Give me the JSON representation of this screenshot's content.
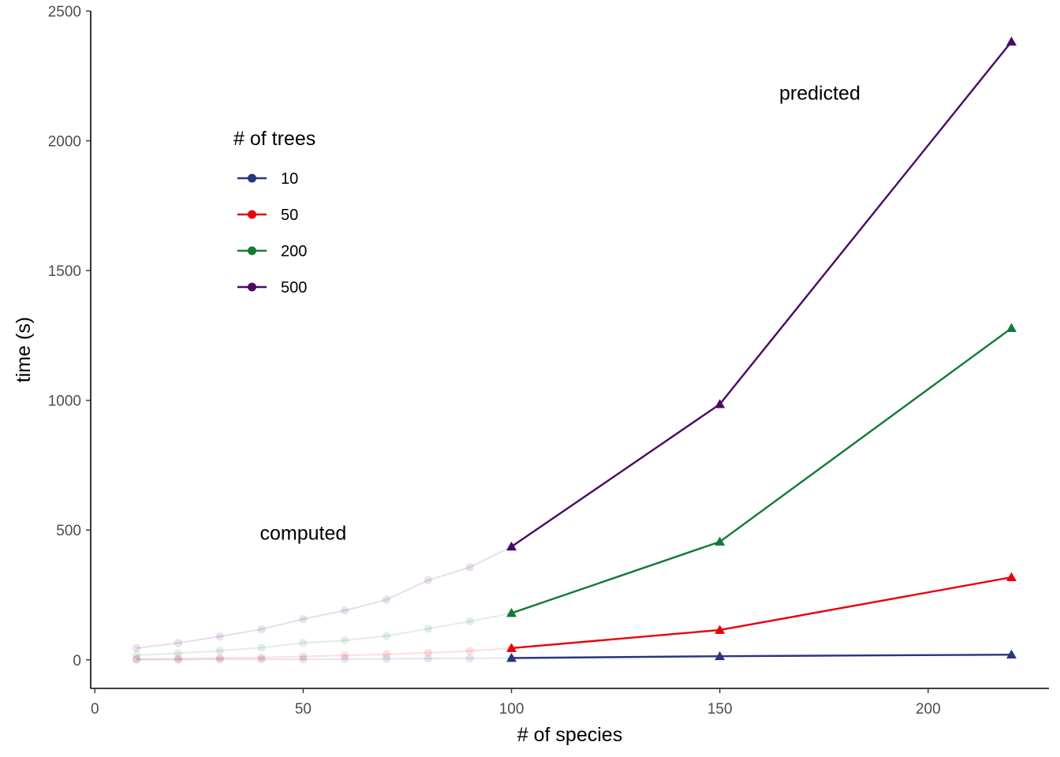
{
  "chart_data": {
    "type": "line",
    "xlabel": "# of species",
    "ylabel": "time (s)",
    "xlim": [
      -1,
      229
    ],
    "ylim": [
      -110,
      2500
    ],
    "x_ticks": [
      0,
      50,
      100,
      150,
      200
    ],
    "y_ticks": [
      0,
      500,
      1000,
      1500,
      2000,
      2500
    ],
    "grid": false,
    "legend": {
      "title": "# of trees",
      "placement": "top-left",
      "entries": [
        "10",
        "50",
        "200",
        "500"
      ]
    },
    "annotations": [
      {
        "text": "predicted",
        "x": 174,
        "y": 2185
      },
      {
        "text": "computed",
        "x": 50,
        "y": 490
      }
    ],
    "computed_x": [
      10,
      20,
      30,
      40,
      50,
      60,
      70,
      80,
      90,
      100
    ],
    "predicted_x": [
      100,
      150,
      220
    ],
    "series": [
      {
        "name": "10",
        "color": "#2b3480",
        "computed": [
          1,
          1,
          2,
          2,
          2,
          3,
          4,
          5,
          6,
          7
        ],
        "predicted": [
          7,
          14,
          20
        ]
      },
      {
        "name": "50",
        "color": "#e8000b",
        "computed": [
          3,
          4,
          7,
          9,
          13,
          17,
          21,
          27,
          34,
          45
        ],
        "predicted": [
          45,
          115,
          318
        ]
      },
      {
        "name": "200",
        "color": "#127a36",
        "computed": [
          18,
          25,
          35,
          47,
          65,
          75,
          92,
          120,
          148,
          180
        ],
        "predicted": [
          180,
          455,
          1278
        ]
      },
      {
        "name": "500",
        "color": "#4a0a66",
        "computed": [
          45,
          65,
          90,
          118,
          157,
          190,
          232,
          307,
          357,
          436
        ],
        "predicted": [
          436,
          985,
          2382
        ]
      }
    ]
  }
}
